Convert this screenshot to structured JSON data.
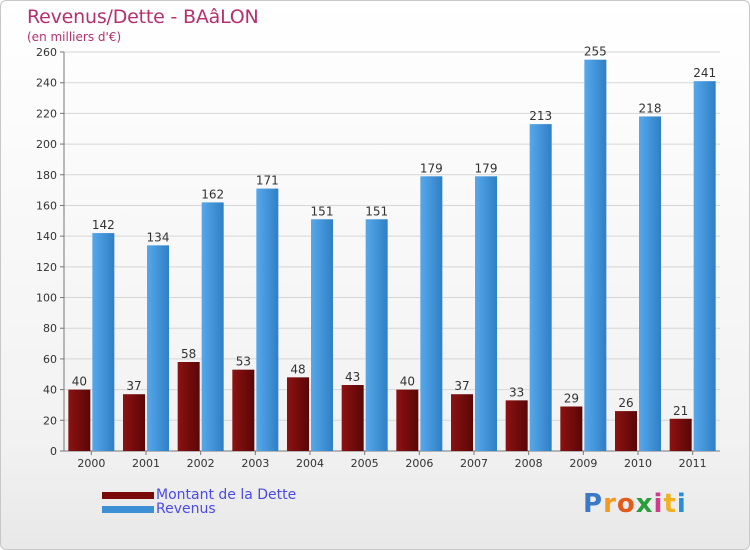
{
  "colors": {
    "title": "#b5306e",
    "debt": "#7a0a0a",
    "revenue": "#3d8fd6",
    "legend_text": "#4a4ae8"
  },
  "chart_data": {
    "type": "bar",
    "title": "Revenus/Dette - BAâLON",
    "subtitle": "(en milliers d'€)",
    "categories": [
      "2000",
      "2001",
      "2002",
      "2003",
      "2004",
      "2005",
      "2006",
      "2007",
      "2008",
      "2009",
      "2010",
      "2011"
    ],
    "series": [
      {
        "name": "Montant de la Dette",
        "values": [
          40,
          37,
          58,
          53,
          48,
          43,
          40,
          37,
          33,
          29,
          26,
          21
        ]
      },
      {
        "name": "Revenus",
        "values": [
          142,
          134,
          162,
          171,
          151,
          151,
          179,
          179,
          213,
          255,
          218,
          241
        ]
      }
    ],
    "ylim": [
      0,
      260
    ],
    "yticks": [
      0,
      20,
      40,
      60,
      80,
      100,
      120,
      140,
      160,
      180,
      200,
      220,
      240,
      260
    ],
    "grid": true,
    "xlabel": "",
    "ylabel": ""
  },
  "logo": {
    "letters": [
      "P",
      "r",
      "o",
      "x",
      "i",
      "t",
      "i"
    ]
  }
}
